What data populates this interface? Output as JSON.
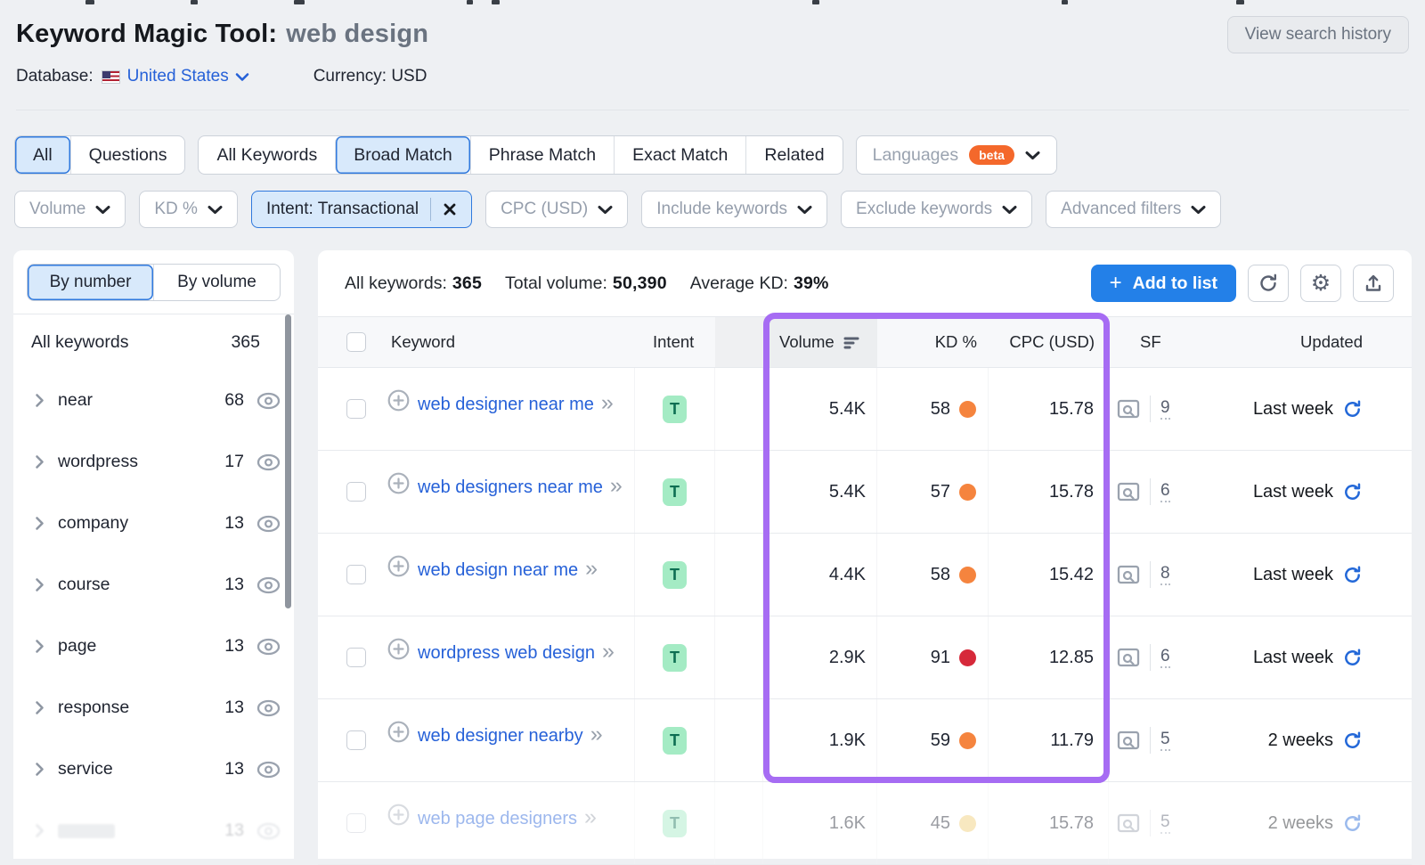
{
  "page": {
    "title_label": "Keyword Magic Tool:",
    "title_query": "web design",
    "view_history": "View search history",
    "database_label": "Database:",
    "database_value": "United States",
    "currency": "Currency: USD"
  },
  "tabs": {
    "group1": [
      {
        "label": "All",
        "selected": true
      },
      {
        "label": "Questions",
        "selected": false
      }
    ],
    "group2": [
      {
        "label": "All Keywords",
        "selected": false
      },
      {
        "label": "Broad Match",
        "selected": true
      },
      {
        "label": "Phrase Match",
        "selected": false
      },
      {
        "label": "Exact Match",
        "selected": false
      },
      {
        "label": "Related",
        "selected": false
      }
    ],
    "languages": {
      "label": "Languages",
      "badge": "beta"
    }
  },
  "filters": [
    {
      "label": "Volume",
      "type": "dropdown"
    },
    {
      "label": "KD %",
      "type": "dropdown"
    },
    {
      "label": "Intent: Transactional",
      "type": "active"
    },
    {
      "label": "CPC (USD)",
      "type": "dropdown"
    },
    {
      "label": "Include keywords",
      "type": "dropdown"
    },
    {
      "label": "Exclude keywords",
      "type": "dropdown"
    },
    {
      "label": "Advanced filters",
      "type": "dropdown"
    }
  ],
  "sidebar": {
    "toggle": [
      {
        "label": "By number",
        "selected": true
      },
      {
        "label": "By volume",
        "selected": false
      }
    ],
    "all_row": {
      "label": "All keywords",
      "count": "365"
    },
    "groups": [
      {
        "label": "near",
        "count": "68"
      },
      {
        "label": "wordpress",
        "count": "17"
      },
      {
        "label": "company",
        "count": "13"
      },
      {
        "label": "course",
        "count": "13"
      },
      {
        "label": "page",
        "count": "13"
      },
      {
        "label": "response",
        "count": "13"
      },
      {
        "label": "service",
        "count": "13"
      }
    ]
  },
  "toolbar": {
    "stats": [
      {
        "label": "All keywords:",
        "value": "365"
      },
      {
        "label": "Total volume:",
        "value": "50,390"
      },
      {
        "label": "Average KD:",
        "value": "39%"
      }
    ],
    "add_to_list": "Add to list"
  },
  "table": {
    "columns": {
      "keyword": "Keyword",
      "intent": "Intent",
      "volume": "Volume",
      "kd": "KD %",
      "cpc": "CPC (USD)",
      "sf": "SF",
      "updated": "Updated"
    },
    "rows": [
      {
        "keyword": "web designer near me",
        "intent": "T",
        "volume": "5.4K",
        "kd": "58",
        "kd_color": "#f5843e",
        "cpc": "15.78",
        "sf": "9",
        "updated": "Last week",
        "faded": false
      },
      {
        "keyword": "web designers near me",
        "intent": "T",
        "volume": "5.4K",
        "kd": "57",
        "kd_color": "#f5843e",
        "cpc": "15.78",
        "sf": "6",
        "updated": "Last week",
        "faded": false
      },
      {
        "keyword": "web design near me",
        "intent": "T",
        "volume": "4.4K",
        "kd": "58",
        "kd_color": "#f5843e",
        "cpc": "15.42",
        "sf": "8",
        "updated": "Last week",
        "faded": false
      },
      {
        "keyword": "wordpress web design",
        "intent": "T",
        "volume": "2.9K",
        "kd": "91",
        "kd_color": "#d6293a",
        "cpc": "12.85",
        "sf": "6",
        "updated": "Last week",
        "faded": false
      },
      {
        "keyword": "web designer nearby",
        "intent": "T",
        "volume": "1.9K",
        "kd": "59",
        "kd_color": "#f5843e",
        "cpc": "11.79",
        "sf": "5",
        "updated": "2 weeks",
        "faded": false
      },
      {
        "keyword": "web page designers",
        "intent": "T",
        "volume": "1.6K",
        "kd": "45",
        "kd_color": "#f0cd74",
        "cpc": "15.78",
        "sf": "5",
        "updated": "2 weeks",
        "faded": true
      }
    ]
  },
  "colors": {
    "highlight_box": "#a66cf3",
    "accent_blue": "#2380e8",
    "intent_badge_bg": "#a4ebc4",
    "intent_badge_text": "#0d6e52",
    "beta_badge": "#f4682b"
  }
}
